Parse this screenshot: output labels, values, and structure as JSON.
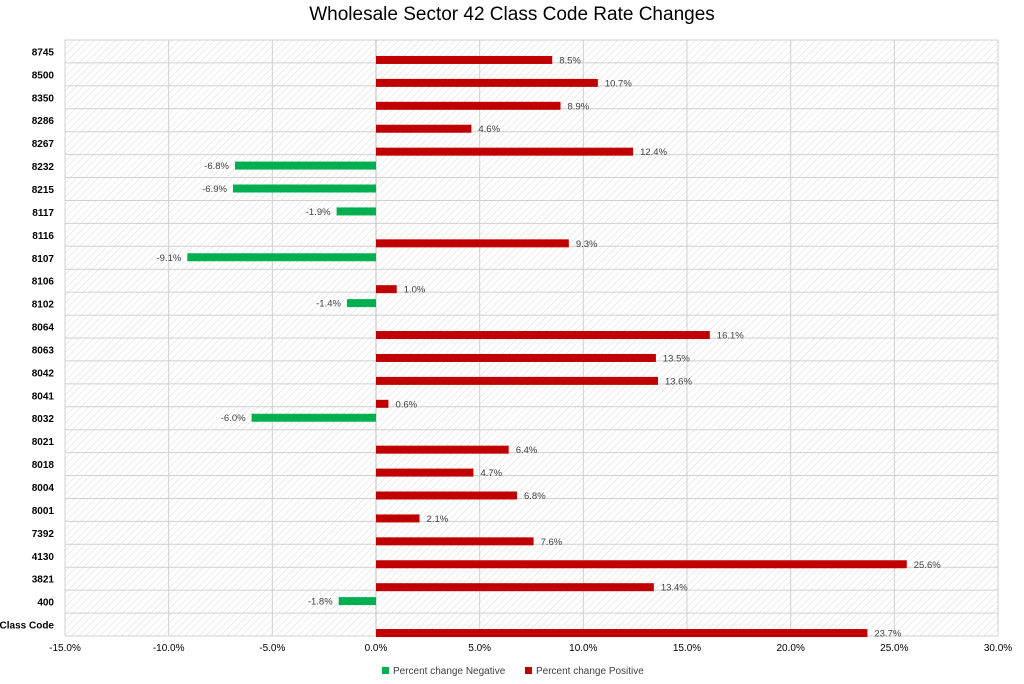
{
  "chart_data": {
    "type": "bar",
    "orientation": "horizontal",
    "title": "Wholesale Sector 42 Class Code Rate Changes",
    "categories": [
      "8745",
      "8500",
      "8350",
      "8286",
      "8267",
      "8232",
      "8215",
      "8117",
      "8116",
      "8107",
      "8106",
      "8102",
      "8064",
      "8063",
      "8042",
      "8041",
      "8032",
      "8021",
      "8018",
      "8004",
      "8001",
      "7392",
      "4130",
      "3821",
      "400",
      "Class Code"
    ],
    "series": [
      {
        "name": "Percent change Negative",
        "color": "#00b050",
        "values": [
          null,
          null,
          null,
          null,
          null,
          -6.8,
          -6.9,
          -1.9,
          null,
          -9.1,
          null,
          -1.4,
          null,
          null,
          null,
          null,
          -6.0,
          null,
          null,
          null,
          null,
          null,
          null,
          null,
          -1.8,
          null
        ],
        "labels": [
          null,
          null,
          null,
          null,
          null,
          "-6.8%",
          "-6.9%",
          "-1.9%",
          null,
          "-9.1%",
          null,
          "-1.4%",
          null,
          null,
          null,
          null,
          "-6.0%",
          null,
          null,
          null,
          null,
          null,
          null,
          null,
          "-1.8%",
          null
        ]
      },
      {
        "name": "Percent change Positive",
        "color": "#c00000",
        "values": [
          8.5,
          10.7,
          8.9,
          4.6,
          12.4,
          null,
          null,
          null,
          9.3,
          null,
          1.0,
          null,
          16.1,
          13.5,
          13.6,
          0.6,
          null,
          6.4,
          4.7,
          6.8,
          2.1,
          7.6,
          25.6,
          13.4,
          null,
          23.7
        ],
        "labels": [
          "8.5%",
          "10.7%",
          "8.9%",
          "4.6%",
          "12.4%",
          null,
          null,
          null,
          "9.3%",
          null,
          "1.0%",
          null,
          "16.1%",
          "13.5%",
          "13.6%",
          "0.6%",
          null,
          "6.4%",
          "4.7%",
          "6.8%",
          "2.1%",
          "7.6%",
          "25.6%",
          "13.4%",
          null,
          "23.7%"
        ]
      }
    ],
    "xlim": [
      -15,
      30
    ],
    "xticks": [
      -15,
      -10,
      -5,
      0,
      5,
      10,
      15,
      20,
      25,
      30
    ],
    "xtick_labels": [
      "-15.0%",
      "-10.0%",
      "-5.0%",
      "0.0%",
      "5.0%",
      "10.0%",
      "15.0%",
      "20.0%",
      "25.0%",
      "30.0%"
    ],
    "plot_background": "hatched",
    "grid": true,
    "legend_position": "bottom"
  }
}
